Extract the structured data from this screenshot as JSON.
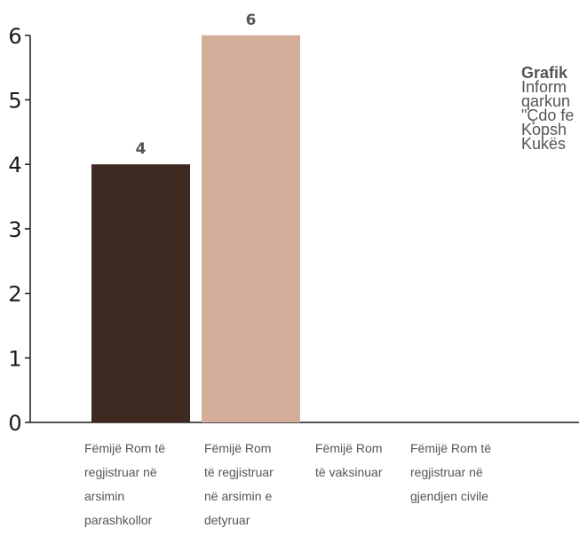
{
  "chart_data": {
    "type": "bar",
    "title": "",
    "xlabel": "",
    "ylabel": "",
    "ylim": [
      0,
      6
    ],
    "yticks": [
      "0",
      "1",
      "2",
      "3",
      "4",
      "5",
      "6"
    ],
    "categories": [
      "Fëmijë Rom të\nregjistruar në\narsimin\nparashkollor",
      "Fëmijë Rom\ntë regjistruar\nnë arsimin e\ndetyruar",
      "Fëmijë Rom\ntë vaksinuar",
      "Fëmijë Rom të\nregjistruar në\ngjendjen civile"
    ],
    "values": [
      4,
      6,
      0,
      0
    ],
    "data_labels": [
      "4",
      "6",
      "",
      ""
    ],
    "colors": [
      "#3e2a20",
      "#d4ad9b",
      "#d4ad9b",
      "#d4ad9b"
    ],
    "grid": false,
    "legend": "none"
  },
  "side_note": {
    "title": "Grafik",
    "lines": [
      "Inform",
      "qarkun",
      "\"Çdo fe",
      "Kopsh",
      "Kukës"
    ]
  }
}
